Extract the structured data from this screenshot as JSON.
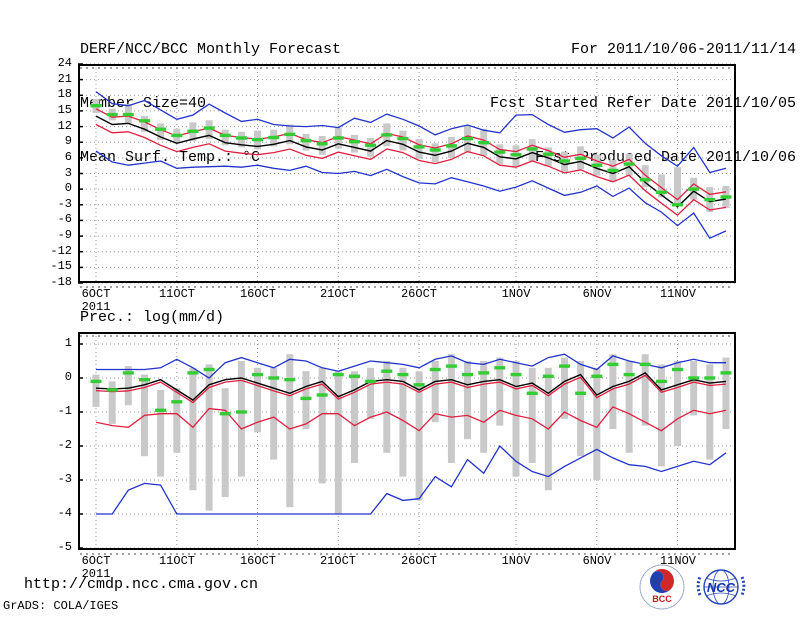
{
  "header": {
    "title": "DERF/NCC/BCC Monthly Forecast",
    "member_size": "Member Size=40",
    "for_range": "For 2011/10/06-2011/11/14",
    "fcst_started": "Fcst Started Refer Date 2011/10/05",
    "fcst_produced": "Fcst Produced Date 2011/10/06"
  },
  "footer": {
    "url": "http://cmdp.ncc.cma.gov.cn",
    "credit": "GrADS: COLA/IGES",
    "logos": [
      "bcc-logo",
      "ncc-logo"
    ]
  },
  "colors": {
    "blue_line": "#2233cc",
    "red_line": "#e02040",
    "black_line": "#000000",
    "green_marker": "#33cc33",
    "spread_bar": "#c9c9c9",
    "grid": "#9a9a9a"
  },
  "chart_data": [
    {
      "type": "line",
      "title": "Mean Surf. Temp.: °C",
      "x_start": "2011-10-06",
      "x_end": "2011-11-14",
      "n_days": 40,
      "ylim": [
        -18,
        24
      ],
      "ytick_step": 3,
      "grid": true,
      "legend": "none",
      "xtick_labels": [
        "6OCT",
        "11OCT",
        "16OCT",
        "21OCT",
        "26OCT",
        "1NOV",
        "6NOV",
        "11NOV"
      ],
      "xtick_days": [
        0,
        5,
        10,
        15,
        20,
        26,
        31,
        36
      ],
      "x_year_label": "2011",
      "series": [
        {
          "name": "blue-upper-envelope",
          "color": "#2233cc",
          "values": [
            18.7,
            16.4,
            16.0,
            17.0,
            15.2,
            13.4,
            14.2,
            16.3,
            14.6,
            13.0,
            13.4,
            12.4,
            12.1,
            12.0,
            12.2,
            11.8,
            13.6,
            12.8,
            14.4,
            13.4,
            12.1,
            10.4,
            11.6,
            12.3,
            11.3,
            10.8,
            14.2,
            14.3,
            12.4,
            10.9,
            11.4,
            11.6,
            9.8,
            11.9,
            8.8,
            6.4,
            4.4,
            8.0,
            3.2,
            4.0
          ]
        },
        {
          "name": "blue-lower-envelope",
          "color": "#2233cc",
          "values": [
            7.3,
            5.2,
            4.6,
            5.0,
            5.4,
            4.0,
            4.2,
            4.3,
            4.4,
            4.2,
            4.6,
            4.0,
            3.6,
            4.4,
            3.2,
            3.0,
            3.4,
            2.6,
            3.8,
            2.4,
            1.2,
            1.0,
            2.2,
            1.4,
            0.6,
            -0.4,
            0.4,
            1.6,
            0.2,
            -1.2,
            -0.6,
            0.6,
            -1.4,
            0.2,
            -2.6,
            -4.4,
            -7.0,
            -4.6,
            -9.4,
            -8.0
          ]
        },
        {
          "name": "red-upper-band",
          "color": "#e02040",
          "values": [
            15.4,
            13.8,
            14.0,
            12.9,
            11.4,
            10.2,
            11.0,
            11.7,
            10.3,
            9.9,
            9.6,
            10.0,
            10.7,
            9.5,
            8.9,
            10.1,
            9.4,
            8.7,
            10.7,
            10.0,
            8.5,
            7.9,
            8.7,
            10.2,
            9.4,
            7.6,
            7.2,
            8.4,
            7.4,
            6.1,
            6.7,
            5.4,
            4.4,
            5.7,
            2.7,
            0.3,
            -2.0,
            1.0,
            -1.0,
            -0.5
          ]
        },
        {
          "name": "red-lower-band",
          "color": "#e02040",
          "values": [
            12.4,
            10.8,
            11.0,
            9.9,
            8.4,
            7.2,
            8.0,
            8.7,
            7.3,
            6.9,
            6.6,
            7.0,
            7.7,
            6.5,
            5.9,
            7.1,
            6.4,
            5.7,
            7.7,
            7.0,
            5.5,
            4.9,
            5.7,
            7.2,
            6.4,
            4.6,
            4.2,
            5.4,
            4.4,
            3.1,
            3.7,
            2.4,
            1.4,
            2.7,
            -0.3,
            -2.7,
            -5.0,
            -2.0,
            -4.0,
            -3.5
          ]
        },
        {
          "name": "black-mid-line",
          "color": "#000000",
          "values": [
            14.0,
            12.4,
            12.6,
            11.5,
            10.0,
            8.8,
            9.6,
            10.3,
            8.9,
            8.5,
            8.2,
            8.6,
            9.3,
            8.1,
            7.5,
            8.7,
            8.0,
            7.3,
            9.3,
            8.6,
            7.1,
            6.5,
            7.3,
            8.8,
            8.0,
            6.2,
            5.8,
            7.0,
            6.0,
            4.7,
            5.3,
            4.0,
            3.0,
            4.3,
            1.3,
            -1.1,
            -3.4,
            -0.4,
            -2.4,
            -1.9
          ]
        },
        {
          "name": "green-mean-markers",
          "color": "#33cc33",
          "style": "dash",
          "values": [
            16.0,
            14.3,
            14.3,
            13.1,
            11.5,
            10.3,
            11.1,
            11.7,
            10.3,
            9.8,
            9.5,
            9.9,
            10.5,
            9.3,
            8.7,
            9.8,
            9.1,
            8.4,
            10.4,
            9.7,
            8.1,
            7.5,
            8.3,
            9.7,
            8.9,
            7.1,
            6.6,
            7.7,
            6.7,
            5.4,
            5.9,
            4.6,
            3.6,
            4.8,
            1.8,
            -0.6,
            -3.0,
            0.0,
            -2.0,
            -1.5
          ]
        }
      ],
      "bars": {
        "name": "gray-spread-bars",
        "color": "#c9c9c9",
        "top": [
          17.3,
          15.4,
          16.3,
          14.0,
          12.6,
          11.6,
          12.8,
          13.2,
          11.4,
          11.0,
          11.2,
          11.4,
          12.4,
          10.6,
          10.2,
          11.8,
          10.4,
          9.8,
          12.6,
          11.2,
          9.6,
          8.8,
          10.0,
          12.2,
          11.6,
          8.6,
          8.4,
          9.6,
          8.0,
          7.2,
          8.2,
          6.6,
          5.6,
          6.8,
          4.6,
          2.8,
          4.2,
          2.2,
          0.4,
          0.6
        ],
        "bottom": [
          14.6,
          13.2,
          12.6,
          11.0,
          9.4,
          8.8,
          9.2,
          9.6,
          8.4,
          8.0,
          7.6,
          8.2,
          8.6,
          7.4,
          6.6,
          7.8,
          7.0,
          6.2,
          8.2,
          7.4,
          5.8,
          5.2,
          6.0,
          7.2,
          6.4,
          4.8,
          4.2,
          5.4,
          4.4,
          3.2,
          3.8,
          2.6,
          1.4,
          2.6,
          0.4,
          -1.6,
          -3.2,
          -2.0,
          -4.4,
          -3.6
        ]
      }
    },
    {
      "type": "line",
      "title": "Prec.: log(mm/d)",
      "x_start": "2011-10-06",
      "x_end": "2011-11-14",
      "n_days": 40,
      "ylim": [
        -5,
        1
      ],
      "ytick_step": 1,
      "grid": true,
      "legend": "none",
      "xtick_labels": [
        "6OCT",
        "11OCT",
        "16OCT",
        "21OCT",
        "26OCT",
        "1NOV",
        "6NOV",
        "11NOV"
      ],
      "xtick_days": [
        0,
        5,
        10,
        15,
        20,
        26,
        31,
        36
      ],
      "x_year_label": "2011",
      "series": [
        {
          "name": "blue-upper-envelope",
          "color": "#2233cc",
          "values": [
            0.25,
            0.25,
            0.25,
            0.25,
            0.3,
            0.55,
            0.3,
            0.0,
            0.45,
            0.6,
            0.45,
            0.3,
            0.55,
            0.5,
            0.3,
            0.2,
            0.35,
            0.5,
            0.45,
            0.4,
            0.3,
            0.55,
            0.65,
            0.45,
            0.4,
            0.55,
            0.45,
            0.35,
            0.6,
            0.7,
            0.4,
            0.25,
            0.65,
            0.5,
            0.4,
            0.3,
            0.45,
            0.55,
            0.45,
            0.45
          ]
        },
        {
          "name": "blue-lower-envelope",
          "color": "#2233cc",
          "values": [
            -4,
            -4,
            -3.3,
            -3.1,
            -3.15,
            -4,
            -4,
            -4,
            -4,
            -4,
            -4,
            -4,
            -4,
            -4,
            -4,
            -4,
            -4,
            -4,
            -3.4,
            -3.6,
            -3.55,
            -2.9,
            -3.2,
            -2.4,
            -2.8,
            -2.0,
            -2.45,
            -2.75,
            -2.9,
            -2.6,
            -2.35,
            -2.1,
            -2.35,
            -2.55,
            -2.6,
            -2.75,
            -2.6,
            -2.45,
            -2.55,
            -2.2
          ]
        },
        {
          "name": "red-upper-band",
          "color": "#e02040",
          "values": [
            -0.37,
            -0.4,
            -0.38,
            -0.28,
            -0.12,
            -0.42,
            -0.72,
            -0.28,
            -0.12,
            -0.07,
            -0.22,
            -0.38,
            -0.52,
            -0.32,
            -0.18,
            -0.62,
            -0.42,
            -0.18,
            -0.12,
            -0.18,
            -0.42,
            -0.18,
            -0.12,
            -0.28,
            -0.18,
            -0.12,
            -0.32,
            -0.22,
            -0.52,
            -0.18,
            0.02,
            -0.58,
            -0.32,
            -0.18,
            0.08,
            -0.42,
            -0.28,
            -0.12,
            -0.22,
            -0.18
          ]
        },
        {
          "name": "red-lower-band",
          "color": "#e02040",
          "values": [
            -1.3,
            -1.4,
            -1.45,
            -1.1,
            -1.05,
            -1.05,
            -1.45,
            -0.9,
            -0.95,
            -1.5,
            -1.3,
            -1.15,
            -1.5,
            -1.35,
            -1.05,
            -1.05,
            -1.4,
            -1.15,
            -1.0,
            -1.25,
            -1.55,
            -1.05,
            -1.15,
            -1.1,
            -1.3,
            -0.95,
            -1.1,
            -1.2,
            -1.5,
            -1.0,
            -1.25,
            -1.45,
            -0.85,
            -1.05,
            -1.3,
            -1.55,
            -1.2,
            -0.95,
            -1.05,
            -0.95
          ]
        },
        {
          "name": "black-mid-line",
          "color": "#000000",
          "values": [
            -0.3,
            -0.32,
            -0.3,
            -0.2,
            -0.05,
            -0.35,
            -0.65,
            -0.2,
            -0.05,
            0.0,
            -0.15,
            -0.3,
            -0.45,
            -0.25,
            -0.1,
            -0.55,
            -0.35,
            -0.1,
            -0.05,
            -0.1,
            -0.35,
            -0.1,
            -0.05,
            -0.2,
            -0.1,
            -0.05,
            -0.25,
            -0.15,
            -0.45,
            -0.1,
            0.1,
            -0.5,
            -0.25,
            -0.1,
            0.15,
            -0.35,
            -0.2,
            -0.05,
            -0.15,
            -0.1
          ]
        },
        {
          "name": "green-mean-markers",
          "color": "#33cc33",
          "style": "dash",
          "values": [
            -0.1,
            -0.35,
            0.15,
            -0.05,
            -0.95,
            -0.7,
            0.15,
            0.25,
            -1.05,
            -1.0,
            0.1,
            0.0,
            -0.05,
            -0.6,
            -0.5,
            0.1,
            0.05,
            -0.1,
            0.2,
            0.1,
            -0.2,
            0.25,
            0.35,
            0.1,
            0.15,
            0.3,
            0.1,
            -0.45,
            0.05,
            0.35,
            -0.45,
            0.05,
            0.4,
            0.1,
            0.4,
            -0.1,
            0.25,
            0.0,
            0.0,
            0.15
          ]
        }
      ],
      "bars": {
        "name": "gray-spread-bars",
        "color": "#c9c9c9",
        "top": [
          0.1,
          -0.1,
          0.35,
          0.1,
          -0.35,
          -0.3,
          0.3,
          0.4,
          -0.3,
          0.5,
          0.3,
          0.3,
          0.7,
          0.2,
          0.3,
          0.2,
          0.2,
          0.3,
          0.5,
          0.3,
          0.2,
          0.5,
          0.7,
          0.5,
          0.5,
          0.6,
          0.5,
          0.3,
          0.3,
          0.6,
          0.5,
          0.3,
          0.7,
          0.5,
          0.7,
          0.4,
          0.5,
          0.5,
          0.4,
          0.6
        ],
        "bottom": [
          -0.85,
          -1.35,
          -0.8,
          -2.3,
          -2.9,
          -2.2,
          -3.3,
          -3.9,
          -3.5,
          -2.9,
          -1.6,
          -2.4,
          -3.8,
          -1.5,
          -3.1,
          -4.0,
          -2.5,
          -1.2,
          -2.2,
          -2.9,
          -3.6,
          -1.3,
          -2.5,
          -1.8,
          -2.2,
          -1.4,
          -2.9,
          -2.5,
          -3.3,
          -1.2,
          -2.3,
          -3.0,
          -1.5,
          -2.2,
          -1.4,
          -2.6,
          -2.0,
          -1.1,
          -2.4,
          -1.5
        ]
      }
    }
  ]
}
